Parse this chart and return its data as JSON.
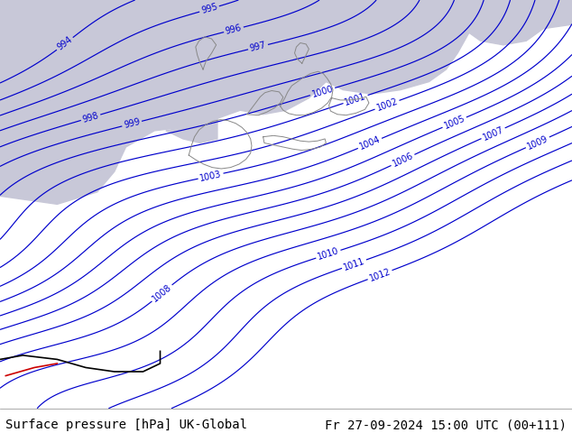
{
  "title_left": "Surface pressure [hPa] UK-Global",
  "title_right": "Fr 27-09-2024 15:00 UTC (00+111)",
  "footer_bg_color": "#ffffff",
  "footer_text_color": "#000000",
  "map_bg_land_color": "#bbee99",
  "map_bg_sea_color": "#c8c8d8",
  "contour_color": "#0000cc",
  "border_color": "#000000",
  "special_border_color_black": "#000000",
  "special_border_color_red": "#cc0000",
  "font_size_footer": 10,
  "contour_levels": [
    994,
    995,
    996,
    997,
    998,
    999,
    1000,
    1001,
    1002,
    1003,
    1004,
    1005,
    1006,
    1007,
    1008,
    1009,
    1010,
    1011,
    1012
  ],
  "figwidth": 6.34,
  "figheight": 4.9,
  "dpi": 100
}
